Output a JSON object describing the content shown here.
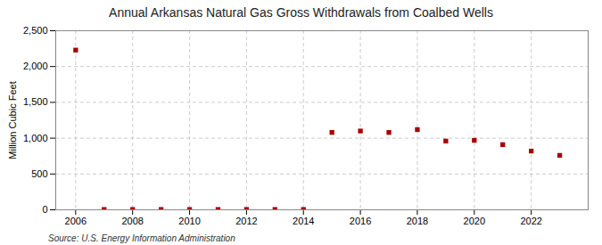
{
  "chart_data": {
    "type": "scatter",
    "title": "Annual Arkansas Natural Gas Gross Withdrawals from Coalbed Wells",
    "ylabel": "Million Cubic Feet",
    "source": "Source: U.S. Energy Information Administration",
    "x": [
      2006,
      2007,
      2008,
      2009,
      2010,
      2011,
      2012,
      2013,
      2014,
      2015,
      2016,
      2017,
      2018,
      2019,
      2020,
      2021,
      2022,
      2023
    ],
    "values": [
      2230,
      5,
      5,
      5,
      5,
      5,
      5,
      5,
      5,
      1080,
      1100,
      1080,
      1120,
      960,
      970,
      910,
      820,
      760
    ],
    "color": "#aa0000",
    "marker": "square",
    "xlim": [
      2005.3,
      2024
    ],
    "xticks": [
      2006,
      2008,
      2010,
      2012,
      2014,
      2016,
      2018,
      2020,
      2022
    ],
    "ylim": [
      0,
      2500
    ],
    "yticks": [
      0,
      500,
      {
        "value": 1000,
        "label": "1,000"
      },
      {
        "value": 1500,
        "label": "1,500"
      },
      {
        "value": 2000,
        "label": "2,000"
      },
      {
        "value": 2500,
        "label": "2,500"
      }
    ],
    "grid": true
  }
}
